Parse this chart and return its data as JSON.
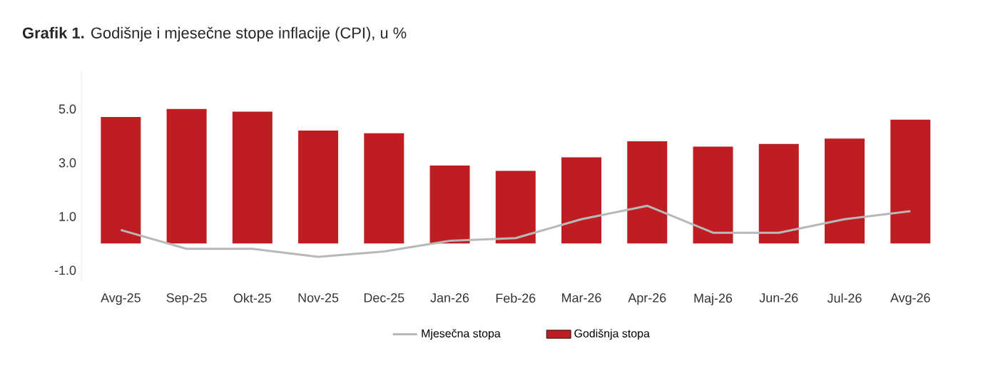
{
  "chart_data": {
    "type": "bar",
    "title": "**Grafik 1.** Godišnje i mjesečne stope inflacije (CPI), u %",
    "categories": [
      "Avg-25",
      "Sep-25",
      "Okt-25",
      "Nov-25",
      "Dec-25",
      "Jan-26",
      "Feb-26",
      "Mar-26",
      "Apr-26",
      "Maj-26",
      "Jun-26",
      "Jul-26",
      "Avg-26"
    ],
    "series": [
      {
        "name": "Mjesečna stopa",
        "type": "line",
        "color": "#b8b8b8",
        "values": [
          0.5,
          -0.2,
          -0.2,
          -0.5,
          -0.3,
          0.1,
          0.2,
          0.9,
          1.4,
          0.4,
          0.4,
          0.9,
          1.2
        ]
      },
      {
        "name": "Godišnja stopa",
        "color": "#be1e22",
        "values": [
          4.7,
          5.0,
          4.9,
          4.2,
          4.1,
          2.9,
          2.7,
          3.2,
          3.8,
          3.6,
          3.7,
          3.9,
          4.6
        ]
      }
    ],
    "ylim": [
      -1.4,
      6.4
    ],
    "yticks": [
      {
        "value": -1,
        "label": "-1.0"
      },
      {
        "value": 1,
        "label": "1.0"
      },
      {
        "value": 3,
        "label": "3.0"
      },
      {
        "value": 5,
        "label": "5.0"
      }
    ],
    "grid": false,
    "legend": "bottom",
    "marker": "none",
    "line_style": "solid"
  }
}
